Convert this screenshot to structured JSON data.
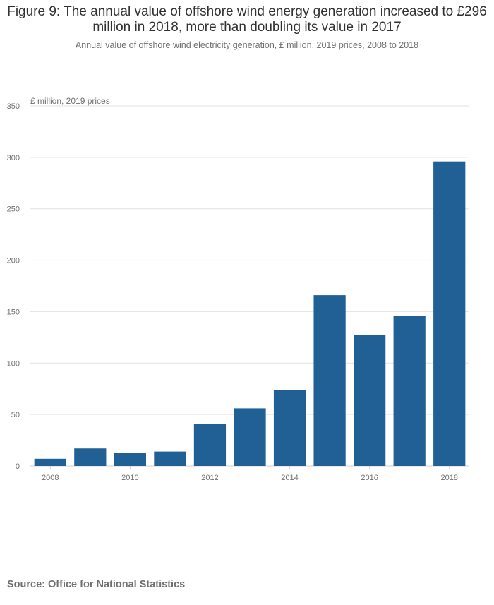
{
  "title": "Figure 9: The annual value of offshore wind energy generation increased to £296 million in 2018, more than doubling its value in 2017",
  "subtitle": "Annual value of offshore wind electricity generation, £ million, 2019 prices, 2008 to 2018",
  "source": "Source: Office for National Statistics",
  "chart_data": {
    "type": "bar",
    "title": "Figure 9: The annual value of offshore wind energy generation increased to £296 million in 2018, more than doubling its value in 2017",
    "subtitle": "Annual value of offshore wind electricity generation, £ million, 2019 prices, 2008 to 2018",
    "ylabel": "£ million, 2019 prices",
    "xlabel": "",
    "categories": [
      "2008",
      "2009",
      "2010",
      "2011",
      "2012",
      "2013",
      "2014",
      "2015",
      "2016",
      "2017",
      "2018"
    ],
    "values": [
      7,
      17,
      13,
      14,
      41,
      56,
      74,
      166,
      127,
      146,
      296
    ],
    "x_tick_labels": [
      "2008",
      "2010",
      "2012",
      "2014",
      "2016",
      "2018"
    ],
    "ylim": [
      0,
      350
    ],
    "y_ticks": [
      0,
      50,
      100,
      150,
      200,
      250,
      300,
      350
    ],
    "grid": true,
    "legend": "none",
    "bar_color": "#206095"
  }
}
